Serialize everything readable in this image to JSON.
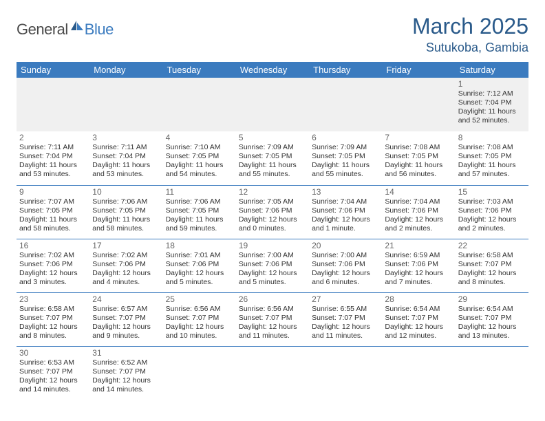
{
  "brand": {
    "part1": "General",
    "part2": "Blue"
  },
  "title": "March 2025",
  "location": "Sutukoba, Gambia",
  "colors": {
    "header_bg": "#3b7bbf",
    "title_color": "#2a5a8a",
    "border_color": "#3b7bbf",
    "empty_bg": "#f0f0f0",
    "daynum_color": "#666666",
    "info_color": "#333333"
  },
  "typography": {
    "title_fontsize": 32,
    "location_fontsize": 18,
    "dayname_fontsize": 13,
    "daynum_fontsize": 12,
    "info_fontsize": 10.5
  },
  "daynames": [
    "Sunday",
    "Monday",
    "Tuesday",
    "Wednesday",
    "Thursday",
    "Friday",
    "Saturday"
  ],
  "weeks": [
    [
      null,
      null,
      null,
      null,
      null,
      null,
      {
        "n": "1",
        "sr": "7:12 AM",
        "ss": "7:04 PM",
        "dl": "11 hours and 52 minutes."
      }
    ],
    [
      {
        "n": "2",
        "sr": "7:11 AM",
        "ss": "7:04 PM",
        "dl": "11 hours and 53 minutes."
      },
      {
        "n": "3",
        "sr": "7:11 AM",
        "ss": "7:04 PM",
        "dl": "11 hours and 53 minutes."
      },
      {
        "n": "4",
        "sr": "7:10 AM",
        "ss": "7:05 PM",
        "dl": "11 hours and 54 minutes."
      },
      {
        "n": "5",
        "sr": "7:09 AM",
        "ss": "7:05 PM",
        "dl": "11 hours and 55 minutes."
      },
      {
        "n": "6",
        "sr": "7:09 AM",
        "ss": "7:05 PM",
        "dl": "11 hours and 55 minutes."
      },
      {
        "n": "7",
        "sr": "7:08 AM",
        "ss": "7:05 PM",
        "dl": "11 hours and 56 minutes."
      },
      {
        "n": "8",
        "sr": "7:08 AM",
        "ss": "7:05 PM",
        "dl": "11 hours and 57 minutes."
      }
    ],
    [
      {
        "n": "9",
        "sr": "7:07 AM",
        "ss": "7:05 PM",
        "dl": "11 hours and 58 minutes."
      },
      {
        "n": "10",
        "sr": "7:06 AM",
        "ss": "7:05 PM",
        "dl": "11 hours and 58 minutes."
      },
      {
        "n": "11",
        "sr": "7:06 AM",
        "ss": "7:05 PM",
        "dl": "11 hours and 59 minutes."
      },
      {
        "n": "12",
        "sr": "7:05 AM",
        "ss": "7:06 PM",
        "dl": "12 hours and 0 minutes."
      },
      {
        "n": "13",
        "sr": "7:04 AM",
        "ss": "7:06 PM",
        "dl": "12 hours and 1 minute."
      },
      {
        "n": "14",
        "sr": "7:04 AM",
        "ss": "7:06 PM",
        "dl": "12 hours and 2 minutes."
      },
      {
        "n": "15",
        "sr": "7:03 AM",
        "ss": "7:06 PM",
        "dl": "12 hours and 2 minutes."
      }
    ],
    [
      {
        "n": "16",
        "sr": "7:02 AM",
        "ss": "7:06 PM",
        "dl": "12 hours and 3 minutes."
      },
      {
        "n": "17",
        "sr": "7:02 AM",
        "ss": "7:06 PM",
        "dl": "12 hours and 4 minutes."
      },
      {
        "n": "18",
        "sr": "7:01 AM",
        "ss": "7:06 PM",
        "dl": "12 hours and 5 minutes."
      },
      {
        "n": "19",
        "sr": "7:00 AM",
        "ss": "7:06 PM",
        "dl": "12 hours and 5 minutes."
      },
      {
        "n": "20",
        "sr": "7:00 AM",
        "ss": "7:06 PM",
        "dl": "12 hours and 6 minutes."
      },
      {
        "n": "21",
        "sr": "6:59 AM",
        "ss": "7:06 PM",
        "dl": "12 hours and 7 minutes."
      },
      {
        "n": "22",
        "sr": "6:58 AM",
        "ss": "7:07 PM",
        "dl": "12 hours and 8 minutes."
      }
    ],
    [
      {
        "n": "23",
        "sr": "6:58 AM",
        "ss": "7:07 PM",
        "dl": "12 hours and 8 minutes."
      },
      {
        "n": "24",
        "sr": "6:57 AM",
        "ss": "7:07 PM",
        "dl": "12 hours and 9 minutes."
      },
      {
        "n": "25",
        "sr": "6:56 AM",
        "ss": "7:07 PM",
        "dl": "12 hours and 10 minutes."
      },
      {
        "n": "26",
        "sr": "6:56 AM",
        "ss": "7:07 PM",
        "dl": "12 hours and 11 minutes."
      },
      {
        "n": "27",
        "sr": "6:55 AM",
        "ss": "7:07 PM",
        "dl": "12 hours and 11 minutes."
      },
      {
        "n": "28",
        "sr": "6:54 AM",
        "ss": "7:07 PM",
        "dl": "12 hours and 12 minutes."
      },
      {
        "n": "29",
        "sr": "6:54 AM",
        "ss": "7:07 PM",
        "dl": "12 hours and 13 minutes."
      }
    ],
    [
      {
        "n": "30",
        "sr": "6:53 AM",
        "ss": "7:07 PM",
        "dl": "12 hours and 14 minutes."
      },
      {
        "n": "31",
        "sr": "6:52 AM",
        "ss": "7:07 PM",
        "dl": "12 hours and 14 minutes."
      },
      null,
      null,
      null,
      null,
      null
    ]
  ],
  "labels": {
    "sunrise": "Sunrise:",
    "sunset": "Sunset:",
    "daylight": "Daylight:"
  }
}
